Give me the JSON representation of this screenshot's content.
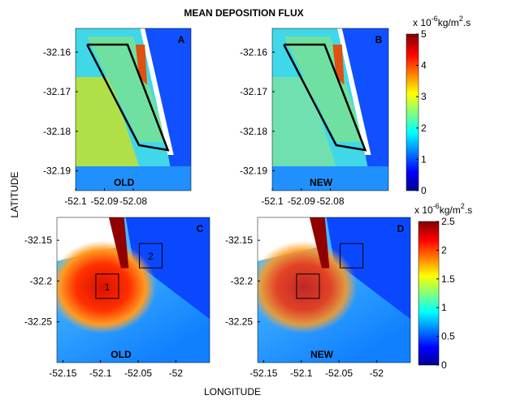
{
  "title": "MEAN DEPOSITION FLUX",
  "xlabel": "LONGITUDE",
  "ylabel": "LATITUDE",
  "chart_data": [
    {
      "type": "heatmap",
      "label": "A",
      "tag": "OLD",
      "xlim": [
        -52.1,
        -52.06
      ],
      "xticks": [
        -52.1,
        -52.09,
        -52.08
      ],
      "ylim": [
        -32.195,
        -32.154
      ],
      "yticks": [
        -32.16,
        -32.17,
        -32.18,
        -32.19
      ]
    },
    {
      "type": "heatmap",
      "label": "B",
      "tag": "NEW",
      "xlim": [
        -52.1,
        -52.06
      ],
      "xticks": [
        -52.1,
        -52.09,
        -52.08
      ],
      "ylim": [
        -32.195,
        -32.154
      ],
      "yticks": [
        -32.16,
        -32.17,
        -32.18,
        -32.19
      ]
    },
    {
      "type": "heatmap",
      "label": "C",
      "tag": "OLD",
      "xlim": [
        -52.158,
        -51.955
      ],
      "xticks": [
        -52.15,
        -52.1,
        -52.05,
        -52
      ],
      "ylim": [
        -32.3,
        -32.122
      ],
      "yticks": [
        -32.15,
        -32.2,
        -32.25
      ],
      "boxes": [
        "1",
        "2"
      ]
    },
    {
      "type": "heatmap",
      "label": "D",
      "tag": "NEW",
      "xlim": [
        -52.158,
        -51.955
      ],
      "xticks": [
        -52.15,
        -52.1,
        -52.05,
        -52
      ],
      "ylim": [
        -32.3,
        -32.122
      ],
      "yticks": [
        -32.15,
        -32.2,
        -32.25
      ]
    }
  ],
  "colorbars": [
    {
      "lim": [
        0,
        5
      ],
      "ticks": [
        0,
        1,
        2,
        3,
        4,
        5
      ],
      "unit": {
        "prefix": "x 10",
        "exp": "-6",
        "unit": "kg/m",
        "unit_exp": "2",
        "suffix": ".s"
      }
    },
    {
      "lim": [
        0,
        2.5
      ],
      "ticks": [
        0,
        0.5,
        1,
        1.5,
        2,
        2.5
      ],
      "unit": {
        "prefix": "x 10",
        "exp": "-6",
        "unit": "kg/m",
        "unit_exp": "2",
        "suffix": ".s"
      }
    }
  ]
}
